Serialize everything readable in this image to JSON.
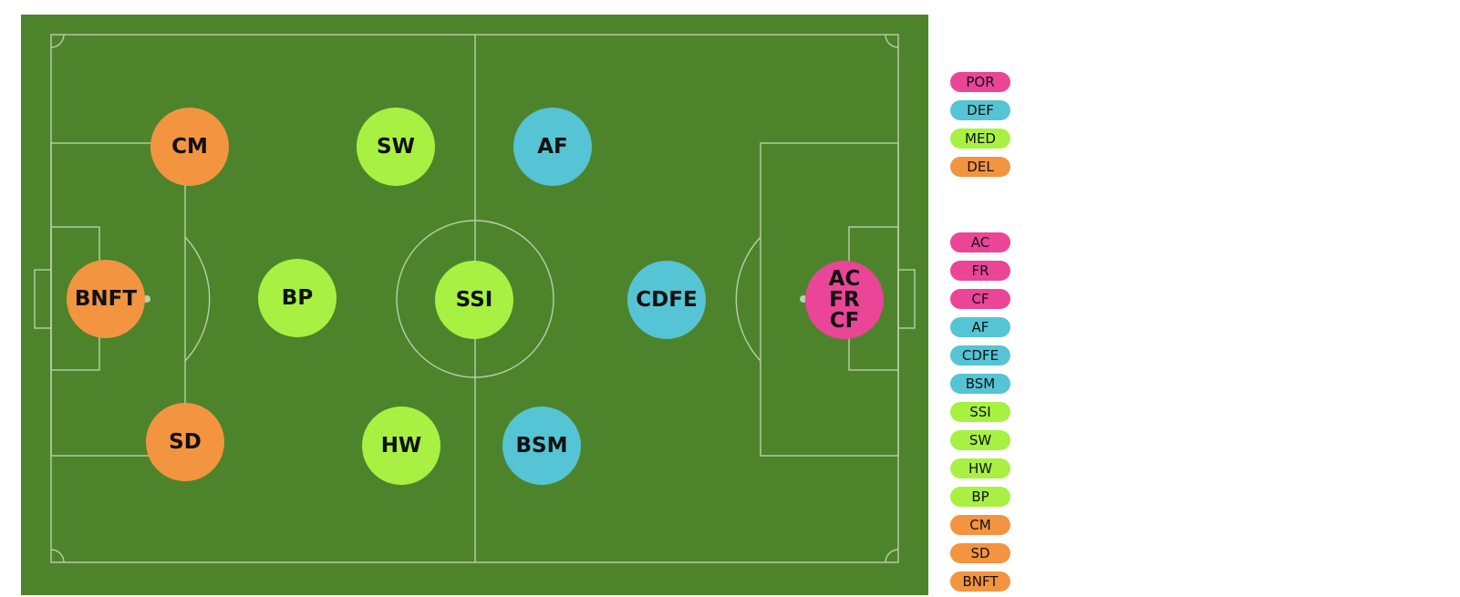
{
  "colors": {
    "pitch": "#4d842b",
    "line": "#b9cfae",
    "POR": "#ea4597",
    "DEF": "#55c4d4",
    "MED": "#a8f143",
    "DEL": "#f39440"
  },
  "players": [
    {
      "label": "CM",
      "group": "DEL"
    },
    {
      "label": "SW",
      "group": "MED"
    },
    {
      "label": "AF",
      "group": "DEF"
    },
    {
      "label": "BNFT",
      "group": "DEL"
    },
    {
      "label": "BP",
      "group": "MED"
    },
    {
      "label": "SSI",
      "group": "MED"
    },
    {
      "label": "CDFE",
      "group": "DEF"
    },
    {
      "label": "AC\nFR\nCF",
      "group": "POR"
    },
    {
      "label": "SD",
      "group": "DEL"
    },
    {
      "label": "HW",
      "group": "MED"
    },
    {
      "label": "BSM",
      "group": "DEF"
    }
  ],
  "legend_groups": [
    {
      "label": "POR",
      "group": "POR"
    },
    {
      "label": "DEF",
      "group": "DEF"
    },
    {
      "label": "MED",
      "group": "MED"
    },
    {
      "label": "DEL",
      "group": "DEL"
    }
  ],
  "legend_roles": [
    {
      "label": "AC",
      "group": "POR"
    },
    {
      "label": "FR",
      "group": "POR"
    },
    {
      "label": "CF",
      "group": "POR"
    },
    {
      "label": "AF",
      "group": "DEF"
    },
    {
      "label": "CDFE",
      "group": "DEF"
    },
    {
      "label": "BSM",
      "group": "DEF"
    },
    {
      "label": "SSI",
      "group": "MED"
    },
    {
      "label": "SW",
      "group": "MED"
    },
    {
      "label": "HW",
      "group": "MED"
    },
    {
      "label": "BP",
      "group": "MED"
    },
    {
      "label": "CM",
      "group": "DEL"
    },
    {
      "label": "SD",
      "group": "DEL"
    },
    {
      "label": "BNFT",
      "group": "DEL"
    }
  ]
}
